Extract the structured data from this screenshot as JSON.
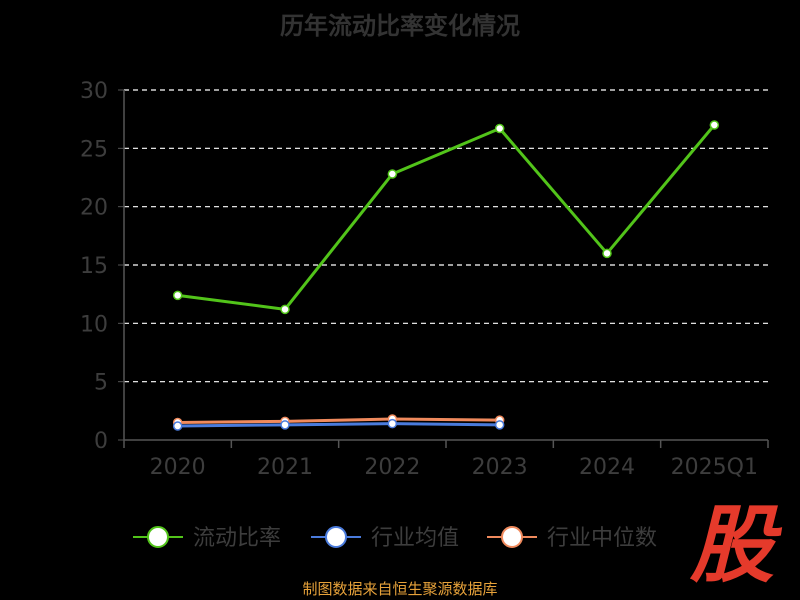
{
  "title": "历年流动比率变化情况",
  "source": "制图数据来自恒生聚源数据库",
  "logo_text": "股",
  "colors": {
    "primary": "#52c41a",
    "industry_avg": "#4a7bdc",
    "industry_median": "#f08a5d",
    "grid": "#ffffff",
    "axis": "#555555",
    "tick_text": "#3d3d3d"
  },
  "chart_data": {
    "type": "line",
    "categories": [
      "2020",
      "2021",
      "2022",
      "2023",
      "2024",
      "2025Q1"
    ],
    "ylim": [
      0,
      30
    ],
    "yticks": [
      0,
      5,
      10,
      15,
      20,
      25,
      30
    ],
    "grid": true,
    "legend_position": "bottom",
    "series": [
      {
        "name": "流动比率",
        "color": "#52c41a",
        "values": [
          12.4,
          11.2,
          22.8,
          26.7,
          16.0,
          27.0
        ]
      },
      {
        "name": "行业均值",
        "color": "#4a7bdc",
        "values": [
          1.2,
          1.3,
          1.4,
          1.3,
          null,
          null
        ]
      },
      {
        "name": "行业中位数",
        "color": "#f08a5d",
        "values": [
          1.5,
          1.6,
          1.8,
          1.7,
          null,
          null
        ]
      }
    ]
  }
}
